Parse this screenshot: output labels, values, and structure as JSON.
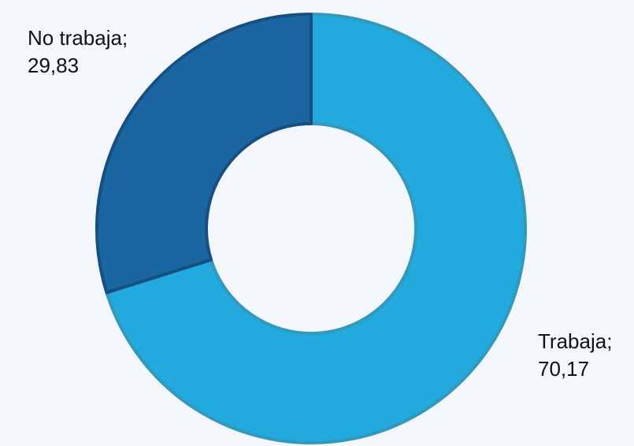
{
  "chart_data": {
    "type": "donut",
    "categories": [
      "Trabaja;",
      "No trabaja;"
    ],
    "values": [
      70.17,
      29.83
    ],
    "value_labels": [
      "70,17",
      "29,83"
    ],
    "colors": [
      "#22aadf",
      "#1a66a0"
    ],
    "stroke_colors": [
      "#3399bb",
      "#174f80"
    ]
  }
}
